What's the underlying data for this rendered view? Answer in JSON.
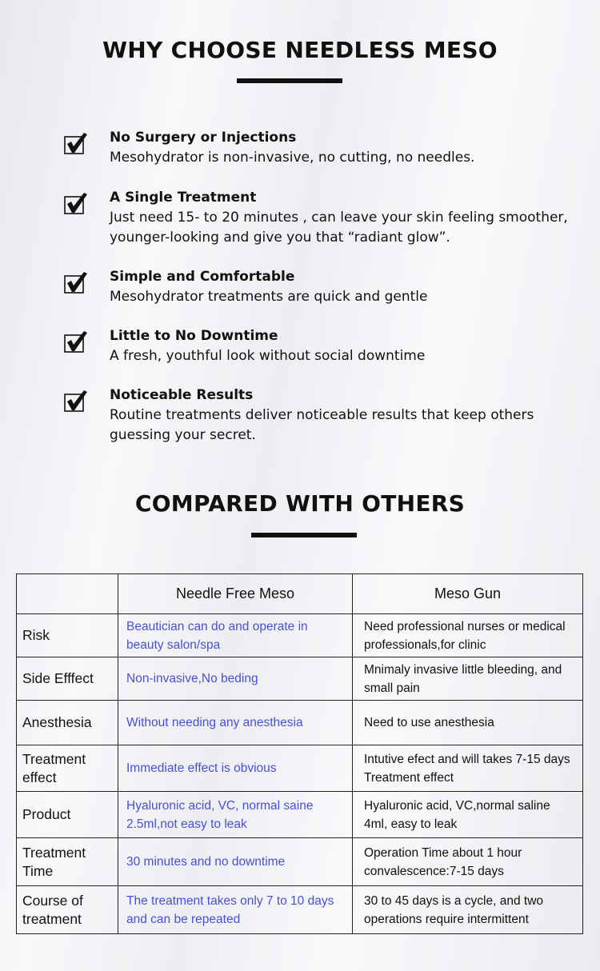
{
  "why": {
    "title": "WHY CHOOSE NEEDLESS MESO",
    "features": [
      {
        "title": "No Surgery or Injections",
        "desc": "Mesohydrator is non-invasive, no cutting, no needles."
      },
      {
        "title": "A Single Treatment",
        "desc": "Just need 15- to 20 minutes , can leave your skin feeling smoother, younger-looking and give you that “radiant glow”."
      },
      {
        "title": "Simple and Comfortable",
        "desc": "Mesohydrator treatments are quick and gentle"
      },
      {
        "title": "Little to No Downtime",
        "desc": "A fresh, youthful look without social downtime"
      },
      {
        "title": "Noticeable Results",
        "desc": "Routine treatments deliver noticeable results that keep others guessing your secret."
      }
    ],
    "icon": "checkbox-checked-icon"
  },
  "compare": {
    "title": "COMPARED WITH OTHERS",
    "headers": [
      "",
      "Needle Free Meso",
      "Meso Gun"
    ],
    "accent": "#4a4fd8",
    "rows": [
      {
        "label": "Risk",
        "a": "Beautician can do and operate in beauty salon/spa",
        "b": "Need professional nurses or medical professionals,for clinic"
      },
      {
        "label": "Side Efffect",
        "a": "Non-invasive,No beding",
        "b": "Mnimaly invasive little bleeding, and small pain"
      },
      {
        "label": "Anesthesia",
        "a": "Without needing any anesthesia",
        "b": "Need to use anesthesia"
      },
      {
        "label": "Treatment effect",
        "a": "Immediate effect is obvious",
        "b": "Intutive efect and will takes 7-15 days Treatment effect"
      },
      {
        "label": "Product",
        "a": "Hyaluronic acid, VC, normal saine 2.5ml,not easy to leak",
        "b": "Hyaluronic acid, VC,normal saline 4ml, easy to leak"
      },
      {
        "label": "Treatment Time",
        "a": "30 minutes and no downtime",
        "b": "Operation Time about 1 hour convalescence:7-15 days"
      },
      {
        "label": "Course of treatment",
        "a": "The treatment takes only 7 to 10 days and can be repeated",
        "b": "30 to 45 days is a cycle, and two operations require intermittent"
      }
    ]
  }
}
